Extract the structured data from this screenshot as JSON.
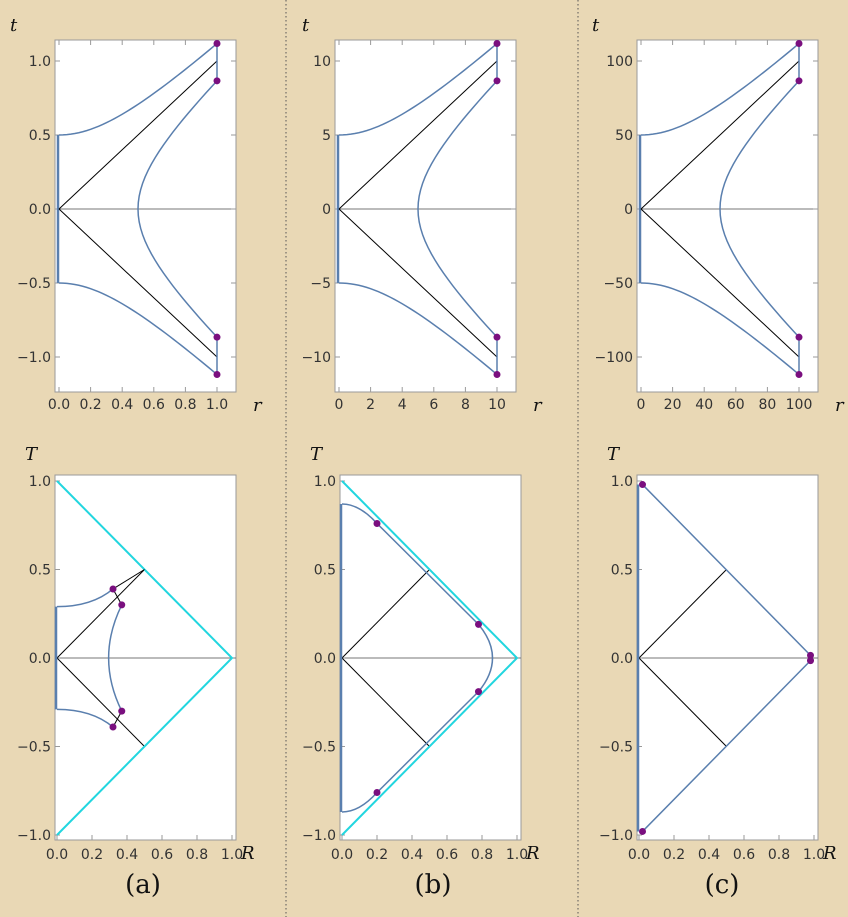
{
  "colors": {
    "background": "#e9d8b5",
    "panel": "#ffffff",
    "curve": "#5a7fae",
    "light_cone": "#22d6df",
    "black_line": "#000000",
    "axis_line": "#777777",
    "point": "#7a0f7f",
    "frame": "#9a9a9a",
    "divider": "#555555",
    "tick_label": "#333333"
  },
  "columns": [
    {
      "caption": "(a)",
      "top": {
        "y_var": "t",
        "x_var": "r",
        "x_ticks": [
          "0.0",
          "0.2",
          "0.4",
          "0.6",
          "0.8",
          "1.0"
        ],
        "y_ticks": [
          "-1.0",
          "-0.5",
          "0.0",
          "0.5",
          "1.0"
        ],
        "x_tick_values": [
          0,
          0.2,
          0.4,
          0.6,
          0.8,
          1.0
        ],
        "y_tick_values": [
          -1.0,
          -0.5,
          0,
          0.5,
          1.0
        ]
      },
      "bottom": {
        "y_var": "T",
        "x_var": "R",
        "x_ticks": [
          "0.0",
          "0.2",
          "0.4",
          "0.6",
          "0.8",
          "1.0"
        ],
        "y_ticks": [
          "-1.0",
          "-0.5",
          "0.0",
          "0.5",
          "1.0"
        ]
      }
    },
    {
      "caption": "(b)",
      "top": {
        "y_var": "t",
        "x_var": "r",
        "x_ticks": [
          "0",
          "2",
          "4",
          "6",
          "8",
          "10"
        ],
        "y_ticks": [
          "-10",
          "-5",
          "0",
          "5",
          "10"
        ],
        "x_tick_values": [
          0,
          2,
          4,
          6,
          8,
          10
        ],
        "y_tick_values": [
          -10,
          -5,
          0,
          5,
          10
        ]
      },
      "bottom": {
        "y_var": "T",
        "x_var": "R",
        "x_ticks": [
          "0.0",
          "0.2",
          "0.4",
          "0.6",
          "0.8",
          "1.0"
        ],
        "y_ticks": [
          "-1.0",
          "-0.5",
          "0.0",
          "0.5",
          "1.0"
        ]
      }
    },
    {
      "caption": "(c)",
      "top": {
        "y_var": "t",
        "x_var": "r",
        "x_ticks": [
          "0",
          "20",
          "40",
          "60",
          "80",
          "100"
        ],
        "y_ticks": [
          "-100",
          "-50",
          "0",
          "50",
          "100"
        ],
        "x_tick_values": [
          0,
          20,
          40,
          60,
          80,
          100
        ],
        "y_tick_values": [
          -100,
          -50,
          0,
          50,
          100
        ]
      },
      "bottom": {
        "y_var": "T",
        "x_var": "R",
        "x_ticks": [
          "0.0",
          "0.2",
          "0.4",
          "0.6",
          "0.8",
          "1.0"
        ],
        "y_ticks": [
          "-1.0",
          "-0.5",
          "0.0",
          "0.5",
          "1.0"
        ]
      }
    }
  ]
}
